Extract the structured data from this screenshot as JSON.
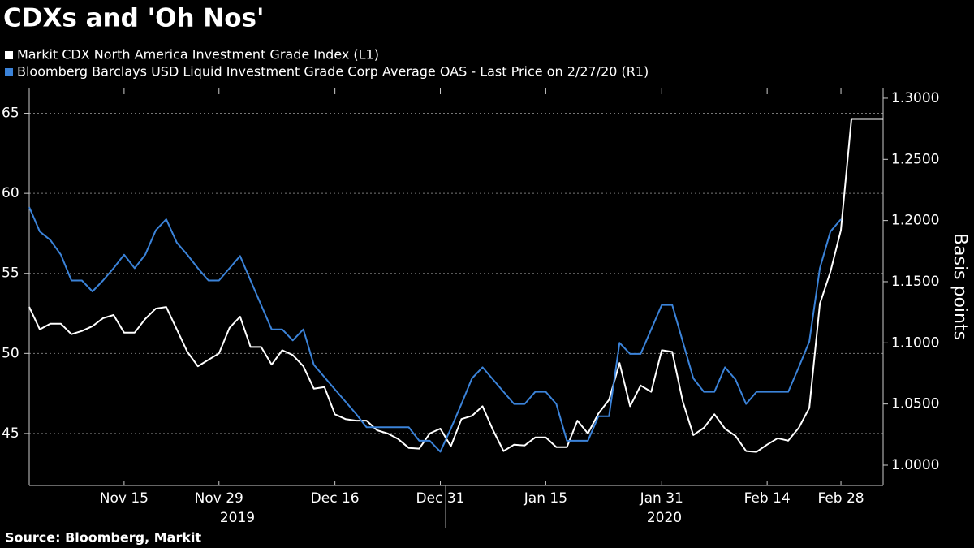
{
  "chart_data": {
    "type": "line",
    "title": "CDXs and 'Oh Nos'",
    "y2_label": "Basis points",
    "source": "Source: Bloomberg, Markit",
    "categories": [
      null,
      null,
      null,
      null,
      null,
      null,
      null,
      null,
      null,
      "Nov 15",
      null,
      null,
      null,
      null,
      null,
      null,
      null,
      null,
      "Nov 29",
      null,
      null,
      null,
      null,
      null,
      null,
      null,
      null,
      null,
      null,
      "Dec 16",
      null,
      null,
      null,
      null,
      null,
      null,
      null,
      null,
      null,
      "Dec 31",
      null,
      null,
      null,
      null,
      null,
      null,
      null,
      null,
      null,
      "Jan 15",
      null,
      null,
      null,
      null,
      null,
      null,
      null,
      null,
      null,
      null,
      "Jan 31",
      null,
      null,
      null,
      null,
      null,
      null,
      null,
      null,
      null,
      "Feb 14",
      null,
      null,
      null,
      null,
      null,
      null,
      "Feb 28",
      null,
      null,
      null,
      null
    ],
    "x_groups": [
      {
        "label": "2019",
        "count": 40
      },
      {
        "label": "2020",
        "count": 42
      }
    ],
    "series": [
      {
        "name": "Markit CDX North America Investment Grade Index (L1)",
        "color": "#ffffff",
        "axis": "y",
        "values": [
          52.9,
          51.5,
          51.85,
          51.85,
          51.2,
          51.4,
          51.7,
          52.2,
          52.4,
          51.3,
          51.3,
          52.15,
          52.8,
          52.9,
          51.5,
          50.1,
          49.2,
          49.6,
          50.0,
          51.6,
          52.3,
          50.4,
          50.4,
          49.3,
          50.2,
          49.9,
          49.2,
          47.8,
          47.9,
          46.2,
          45.9,
          45.8,
          45.8,
          45.2,
          45.0,
          44.65,
          44.1,
          44.05,
          45.0,
          45.3,
          44.2,
          45.9,
          46.1,
          46.7,
          45.2,
          43.9,
          44.3,
          44.25,
          44.75,
          44.75,
          44.15,
          44.15,
          45.8,
          45.0,
          46.25,
          47.1,
          49.4,
          46.7,
          48.0,
          47.6,
          50.2,
          50.1,
          47.0,
          44.9,
          45.35,
          46.2,
          45.3,
          44.85,
          43.9,
          43.85,
          44.3,
          44.7,
          44.55,
          45.35,
          46.6,
          53.1,
          55.1,
          57.7,
          64.65,
          64.65,
          64.65,
          64.65
        ]
      },
      {
        "name": "Bloomberg Barclays USD Liquid Investment Grade Corp Average OAS - Last Price on 2/27/20 (R1)",
        "color": "#3b83d9",
        "axis": "y2",
        "values": [
          1.211,
          1.191,
          1.184,
          1.172,
          1.151,
          1.151,
          1.142,
          1.151,
          1.161,
          1.172,
          1.161,
          1.172,
          1.192,
          1.201,
          1.182,
          1.172,
          1.161,
          1.151,
          1.151,
          1.161,
          1.171,
          1.151,
          1.131,
          1.111,
          1.111,
          1.102,
          1.111,
          1.082,
          1.072,
          1.062,
          1.052,
          1.042,
          1.031,
          1.031,
          1.031,
          1.031,
          1.031,
          1.02,
          1.02,
          1.011,
          1.03,
          1.05,
          1.071,
          1.08,
          1.07,
          1.06,
          1.05,
          1.05,
          1.06,
          1.06,
          1.05,
          1.02,
          1.02,
          1.02,
          1.04,
          1.04,
          1.1,
          1.091,
          1.091,
          1.111,
          1.131,
          1.131,
          1.101,
          1.071,
          1.06,
          1.06,
          1.08,
          1.07,
          1.05,
          1.06,
          1.06,
          1.06,
          1.06,
          1.08,
          1.101,
          1.161,
          1.191,
          1.201,
          null,
          null,
          null,
          null
        ]
      }
    ],
    "ylim": [
      41.75,
      66.6
    ],
    "yticks": [
      45,
      50,
      55,
      60,
      65
    ],
    "y2lim": [
      0.9834,
      1.3086
    ],
    "y2ticks": [
      {
        "value": 1.0,
        "label": "1.0000"
      },
      {
        "value": 1.05,
        "label": "1.0500"
      },
      {
        "value": 1.1,
        "label": "1.1000"
      },
      {
        "value": 1.15,
        "label": "1.1500"
      },
      {
        "value": 1.2,
        "label": "1.2000"
      },
      {
        "value": 1.25,
        "label": "1.2500"
      },
      {
        "value": 1.3,
        "label": "1.3000"
      }
    ],
    "grid": true
  }
}
